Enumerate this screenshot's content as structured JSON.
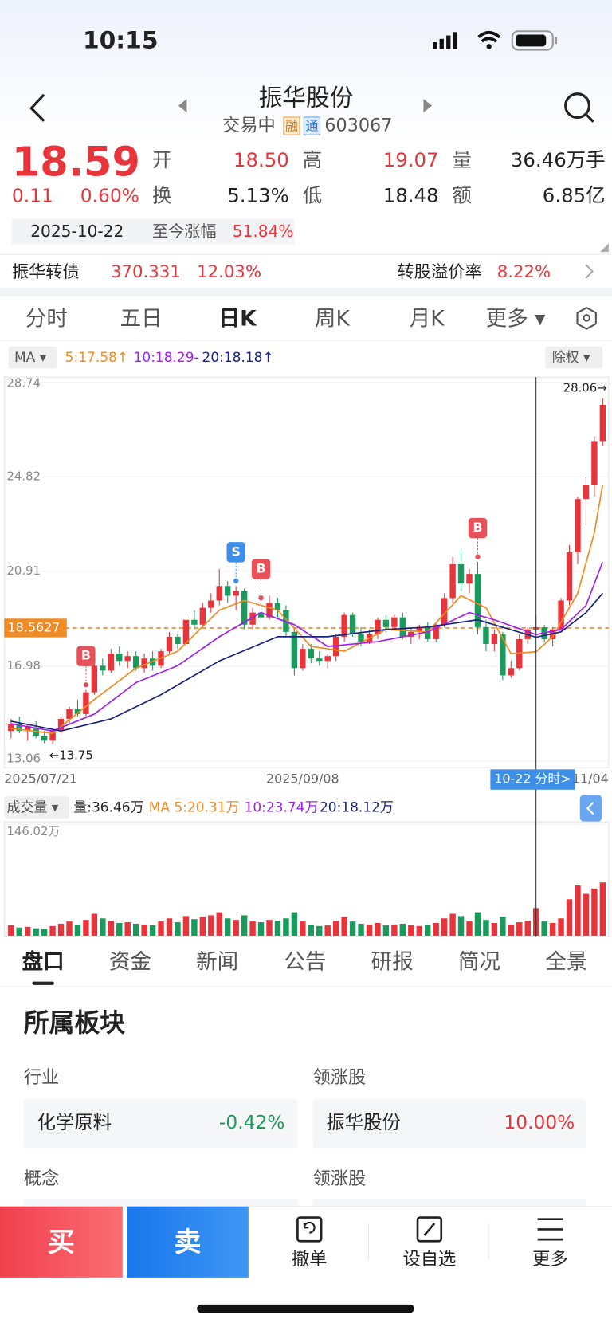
{
  "status_bar": {
    "time": "10:15"
  },
  "header": {
    "title": "振华股份",
    "status": "交易中",
    "tags": [
      "融",
      "通"
    ],
    "code": "603067"
  },
  "quote": {
    "price": "18.59",
    "change": "0.11",
    "change_pct": "0.60%",
    "fields": [
      [
        "开",
        "18.50"
      ],
      [
        "高",
        "19.07"
      ],
      [
        "量",
        "36.46万手"
      ],
      [
        "换",
        "5.13%"
      ],
      [
        "低",
        "18.48"
      ],
      [
        "额",
        "6.85亿"
      ]
    ],
    "date": "2025-10-22",
    "since_label": "至今涨幅",
    "since_value": "51.84%"
  },
  "bond": {
    "name": "振华转债",
    "price": "370.331",
    "change": "12.03%",
    "premium_label": "转股溢价率",
    "premium": "8.22%"
  },
  "chart_tabs": [
    "分时",
    "五日",
    "日K",
    "周K",
    "月K",
    "更多 ▾"
  ],
  "chart_data": {
    "type": "candlestick",
    "ma_selector": "MA ▾",
    "ma_legend": [
      "5:17.58↑",
      "10:18.29-",
      "20:18.18↑"
    ],
    "adjust": "除权 ▾",
    "categories": [
      "2025/07/21",
      null,
      null,
      null,
      null,
      null,
      null,
      null,
      null,
      null,
      null,
      null,
      null,
      null,
      null,
      null,
      null,
      null,
      null,
      null,
      null,
      null,
      null,
      null,
      null,
      null,
      null,
      null,
      null,
      null,
      null,
      null,
      null,
      null,
      null,
      "2025/09/08",
      null,
      null,
      null,
      null,
      null,
      null,
      null,
      null,
      null,
      null,
      null,
      null,
      null,
      null,
      null,
      null,
      null,
      null,
      null,
      null,
      null,
      null,
      null,
      null,
      null,
      null,
      null,
      null,
      null,
      null,
      null,
      null,
      null,
      null,
      null,
      "2025/11/04"
    ],
    "candles": [
      [
        14.3,
        14.8,
        14.0,
        14.6
      ],
      [
        14.6,
        14.9,
        14.2,
        14.3
      ],
      [
        14.3,
        14.6,
        13.9,
        14.5
      ],
      [
        14.4,
        14.7,
        14.0,
        14.1
      ],
      [
        14.1,
        14.3,
        13.8,
        13.9
      ],
      [
        13.9,
        14.4,
        13.75,
        14.3
      ],
      [
        14.3,
        14.9,
        14.2,
        14.8
      ],
      [
        14.8,
        15.3,
        14.6,
        15.2
      ],
      [
        15.2,
        15.6,
        14.9,
        15.0
      ],
      [
        15.0,
        16.0,
        14.9,
        15.9
      ],
      [
        15.9,
        17.1,
        15.8,
        17.0
      ],
      [
        17.0,
        17.3,
        16.6,
        16.8
      ],
      [
        16.8,
        17.7,
        16.7,
        17.5
      ],
      [
        17.5,
        17.8,
        17.0,
        17.2
      ],
      [
        17.2,
        17.6,
        16.9,
        17.4
      ],
      [
        17.4,
        17.6,
        16.8,
        16.9
      ],
      [
        16.9,
        17.5,
        16.7,
        17.3
      ],
      [
        17.3,
        17.6,
        16.8,
        17.0
      ],
      [
        17.0,
        17.7,
        16.9,
        17.6
      ],
      [
        17.6,
        18.4,
        17.5,
        18.2
      ],
      [
        18.2,
        18.3,
        17.7,
        17.9
      ],
      [
        17.9,
        19.0,
        17.8,
        18.9
      ],
      [
        18.9,
        19.3,
        18.5,
        18.7
      ],
      [
        18.7,
        19.6,
        18.6,
        19.4
      ],
      [
        19.4,
        20.0,
        19.2,
        19.7
      ],
      [
        19.7,
        21.0,
        19.5,
        20.3
      ],
      [
        20.3,
        20.5,
        19.6,
        19.9
      ],
      [
        19.9,
        20.3,
        19.3,
        20.1
      ],
      [
        20.1,
        20.2,
        18.5,
        18.7
      ],
      [
        18.7,
        19.4,
        18.5,
        19.2
      ],
      [
        19.2,
        19.6,
        18.9,
        19.0
      ],
      [
        19.0,
        19.9,
        18.9,
        19.6
      ],
      [
        19.6,
        19.8,
        19.0,
        19.3
      ],
      [
        19.3,
        19.5,
        18.2,
        18.4
      ],
      [
        18.4,
        18.6,
        16.6,
        16.9
      ],
      [
        16.9,
        17.9,
        16.8,
        17.7
      ],
      [
        17.7,
        17.9,
        17.1,
        17.3
      ],
      [
        17.3,
        17.6,
        17.0,
        17.2
      ],
      [
        17.2,
        17.5,
        16.9,
        17.4
      ],
      [
        17.4,
        18.3,
        17.2,
        18.2
      ],
      [
        18.2,
        19.2,
        18.0,
        19.1
      ],
      [
        19.1,
        19.2,
        18.2,
        18.3
      ],
      [
        18.3,
        18.6,
        17.8,
        18.0
      ],
      [
        18.0,
        18.5,
        17.9,
        18.3
      ],
      [
        18.3,
        19.0,
        18.1,
        18.9
      ],
      [
        18.9,
        19.1,
        18.4,
        18.6
      ],
      [
        18.6,
        19.1,
        18.5,
        19.0
      ],
      [
        19.0,
        19.2,
        18.1,
        18.2
      ],
      [
        18.2,
        18.6,
        17.9,
        18.4
      ],
      [
        18.4,
        18.7,
        18.1,
        18.6
      ],
      [
        18.6,
        18.8,
        18.0,
        18.1
      ],
      [
        18.1,
        18.8,
        18.0,
        18.7
      ],
      [
        18.7,
        20.0,
        18.6,
        19.8
      ],
      [
        19.8,
        21.5,
        19.6,
        21.2
      ],
      [
        21.2,
        21.8,
        20.1,
        20.4
      ],
      [
        20.4,
        21.0,
        20.0,
        20.8
      ],
      [
        20.8,
        21.3,
        18.3,
        18.6
      ],
      [
        18.6,
        18.9,
        17.6,
        17.9
      ],
      [
        17.9,
        18.5,
        17.6,
        18.3
      ],
      [
        18.3,
        18.4,
        16.4,
        16.6
      ],
      [
        16.6,
        17.2,
        16.5,
        16.9
      ],
      [
        16.9,
        18.3,
        16.8,
        18.1
      ],
      [
        18.1,
        18.6,
        17.9,
        18.5
      ],
      [
        18.5,
        19.07,
        18.48,
        18.59
      ],
      [
        18.59,
        18.7,
        18.0,
        18.1
      ],
      [
        18.1,
        18.6,
        17.8,
        18.5
      ],
      [
        18.5,
        19.8,
        18.4,
        19.7
      ],
      [
        19.7,
        22.0,
        19.5,
        21.7
      ],
      [
        21.7,
        24.0,
        21.2,
        23.9
      ],
      [
        23.9,
        24.8,
        22.8,
        24.5
      ],
      [
        24.5,
        26.5,
        24.0,
        26.3
      ],
      [
        26.3,
        28.06,
        26.1,
        27.8
      ]
    ],
    "ylim": [
      13.06,
      28.74
    ],
    "yticks": [
      13.06,
      16.98,
      20.91,
      24.82,
      28.74
    ],
    "grid": true,
    "up_color": "#e8353b",
    "down_color": "#1a9a5c",
    "series": [
      {
        "color": "#f08a24",
        "x": [
          0,
          5,
          10,
          15,
          20,
          25,
          28,
          32,
          36,
          40,
          45,
          50,
          54,
          57,
          60,
          63,
          65,
          68,
          70,
          71
        ],
        "values": [
          14.4,
          14.2,
          15.6,
          16.9,
          17.6,
          19.3,
          19.7,
          19.3,
          17.8,
          17.6,
          18.5,
          18.4,
          19.9,
          19.4,
          17.5,
          17.58,
          18.2,
          20.0,
          22.5,
          24.5
        ]
      },
      {
        "color": "#a020f0",
        "x": [
          0,
          5,
          10,
          15,
          20,
          25,
          30,
          34,
          38,
          44,
          50,
          55,
          58,
          63,
          66,
          69,
          71
        ],
        "values": [
          14.6,
          14.3,
          15.0,
          16.3,
          17.0,
          18.2,
          19.2,
          18.7,
          17.8,
          18.0,
          18.4,
          19.2,
          18.9,
          18.29,
          18.5,
          19.5,
          21.3
        ]
      },
      {
        "color": "#1a237e",
        "x": [
          0,
          6,
          12,
          18,
          25,
          32,
          38,
          45,
          50,
          56,
          63,
          66,
          69,
          71
        ],
        "values": [
          14.7,
          14.3,
          14.8,
          15.8,
          17.2,
          18.2,
          18.2,
          18.5,
          18.6,
          18.9,
          18.18,
          18.4,
          19.2,
          20.0
        ]
      }
    ],
    "ref_line": 18.5627,
    "high_label": {
      "value": 28.06,
      "label": "28.06→"
    },
    "low_label": {
      "value": 13.75,
      "label": "←13.75"
    },
    "markers": [
      {
        "label": "B",
        "x": 9
      },
      {
        "label": "S",
        "x": 27
      },
      {
        "label": "B",
        "x": 30
      },
      {
        "label": "B",
        "x": 56
      }
    ],
    "cursor": {
      "x": 63,
      "label": "10-22 分时>"
    },
    "volume": {
      "selector": "成交量 ▾",
      "legend": [
        "量:36.46万",
        "MA 5:20.31万",
        "10:23.74万",
        "20:18.12万"
      ],
      "legend_colors": [
        "#222222",
        "#f08a24",
        "#a020f0",
        "#1a237e"
      ],
      "values": [
        14,
        11,
        12,
        10,
        9,
        13,
        16,
        19,
        15,
        21,
        29,
        23,
        20,
        17,
        18,
        16,
        15,
        14,
        19,
        23,
        18,
        26,
        22,
        25,
        27,
        31,
        23,
        21,
        27,
        19,
        18,
        21,
        20,
        23,
        31,
        19,
        15,
        13,
        14,
        20,
        25,
        19,
        16,
        15,
        17,
        14,
        15,
        16,
        14,
        13,
        15,
        17,
        23,
        29,
        26,
        19,
        31,
        21,
        17,
        25,
        15,
        18,
        20,
        36.46,
        19,
        17,
        23,
        48,
        66,
        55,
        62,
        70
      ],
      "ylim": [
        0,
        146.02
      ],
      "yticks": [
        {
          "value": 146.02,
          "label": "146.02万"
        }
      ]
    }
  },
  "bottom_tabs": [
    "盘口",
    "资金",
    "新闻",
    "公告",
    "研报",
    "简况",
    "全景"
  ],
  "sector": {
    "title": "所属板块",
    "rows": [
      {
        "label": "行业",
        "name": "化学原料",
        "value": "-0.42%"
      },
      {
        "label": "领涨股",
        "name": "振华股份",
        "value": "10.00%"
      }
    ],
    "labels2": [
      "概念",
      "领涨股"
    ]
  },
  "toolbar": [
    "买",
    "卖",
    "撤单",
    "设自选",
    "更多"
  ]
}
